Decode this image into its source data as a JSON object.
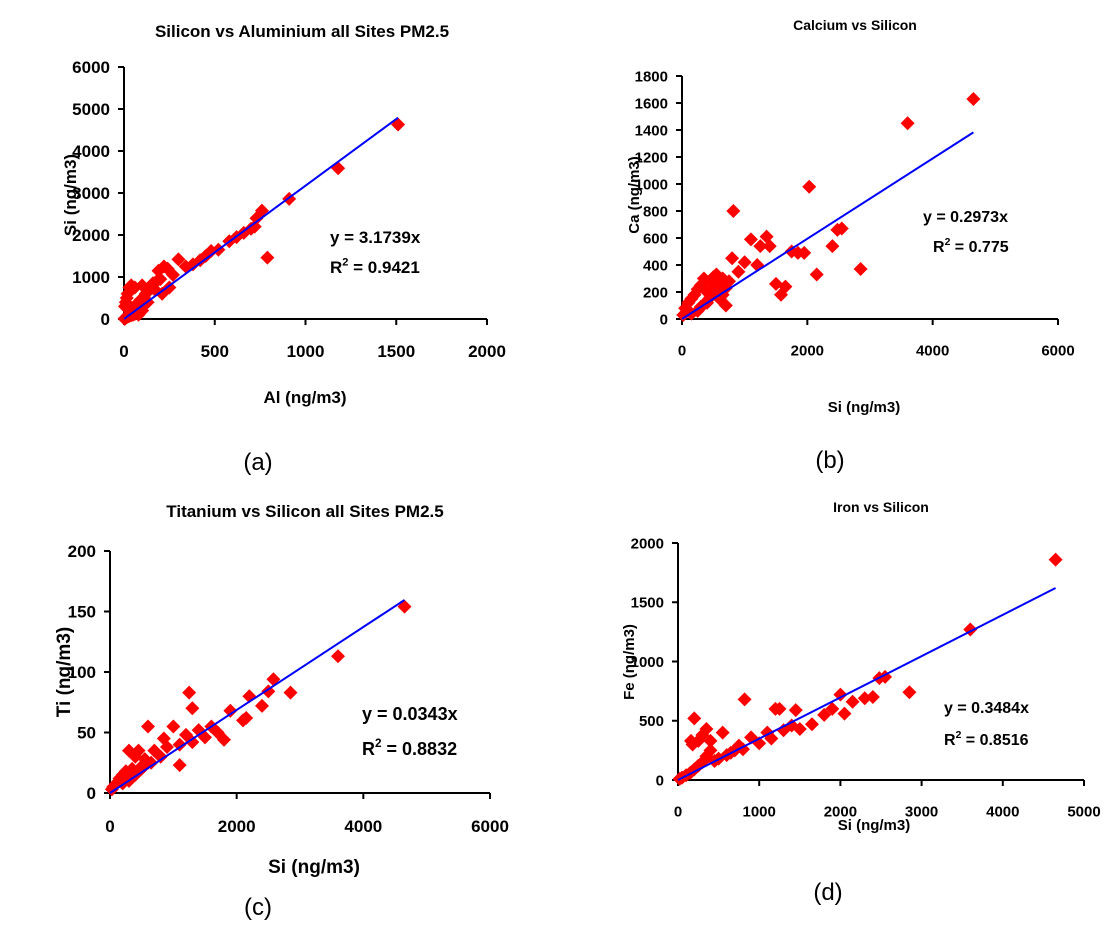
{
  "marker_color": "#ff0000",
  "trend_color": "#0000ff",
  "chart_data": [
    {
      "type": "scatter",
      "title": "Silicon vs Aluminium all Sites PM2.5",
      "xlabel": "Al (ng/m3)",
      "ylabel": "Si (ng/m3)",
      "xlim": [
        0,
        2000
      ],
      "ylim": [
        0,
        6000
      ],
      "xticks": [
        "0",
        "500",
        "1000",
        "1500",
        "2000"
      ],
      "yticks": [
        "0",
        "1000",
        "2000",
        "3000",
        "4000",
        "5000",
        "6000"
      ],
      "grid": false,
      "trendline": {
        "slope": 3.1739,
        "x_end": 1510
      },
      "equation": "y = 3.1739x",
      "r2_prefix": "R",
      "r2_sup": "2",
      "r2_value": " = 0.9421",
      "caption": "(a)",
      "x": [
        1510,
        1180,
        910,
        790,
        760,
        730,
        720,
        700,
        660,
        620,
        580,
        520,
        480,
        450,
        420,
        380,
        340,
        300,
        270,
        240,
        220,
        200,
        180,
        160,
        150,
        140,
        130,
        120,
        110,
        100,
        90,
        80,
        75,
        70,
        60,
        55,
        50,
        45,
        40,
        35,
        30,
        25,
        20,
        18,
        15,
        12,
        10,
        8,
        6,
        5,
        3,
        210,
        190,
        250,
        170,
        130,
        100,
        90,
        60,
        40,
        30,
        20,
        15,
        10,
        5,
        100,
        80,
        70,
        60,
        50,
        40,
        30,
        20
      ],
      "y": [
        4630,
        3590,
        2860,
        1460,
        2580,
        2400,
        2200,
        2150,
        2050,
        1950,
        1850,
        1650,
        1620,
        1500,
        1400,
        1300,
        1250,
        1420,
        1050,
        1200,
        1250,
        950,
        900,
        850,
        800,
        700,
        650,
        600,
        520,
        480,
        450,
        400,
        350,
        320,
        280,
        250,
        220,
        200,
        180,
        150,
        120,
        100,
        80,
        60,
        50,
        40,
        30,
        20,
        15,
        10,
        5,
        600,
        1150,
        750,
        700,
        400,
        800,
        200,
        750,
        800,
        750,
        600,
        500,
        400,
        300,
        200,
        100,
        150,
        120,
        100,
        90,
        70,
        50
      ]
    },
    {
      "type": "scatter",
      "title": "Calcium vs Silicon",
      "xlabel": "Si (ng/m3)",
      "ylabel": "Ca (ng/m3)",
      "xlim": [
        0,
        6000
      ],
      "ylim": [
        0,
        1800
      ],
      "xticks": [
        "0",
        "2000",
        "4000",
        "6000"
      ],
      "yticks": [
        "0",
        "200",
        "400",
        "600",
        "800",
        "1000",
        "1200",
        "1400",
        "1600",
        "1800"
      ],
      "grid": false,
      "trendline": {
        "slope": 0.2973,
        "x_end": 4650
      },
      "equation": "y = 0.2973x",
      "r2_prefix": "R",
      "r2_sup": "2",
      "r2_value": " = 0.775",
      "caption": "(b)",
      "x": [
        4650,
        3600,
        2850,
        2550,
        2480,
        2400,
        2150,
        2030,
        1950,
        1850,
        1750,
        1650,
        1580,
        1500,
        1400,
        1350,
        1250,
        1200,
        1100,
        1000,
        900,
        820,
        800,
        750,
        700,
        650,
        600,
        550,
        500,
        450,
        400,
        350,
        300,
        250,
        200,
        150,
        100,
        50,
        20,
        600,
        500,
        400,
        300,
        700,
        650,
        550,
        450,
        350,
        250,
        150
      ],
      "y": [
        1630,
        1450,
        370,
        670,
        660,
        540,
        330,
        980,
        490,
        490,
        500,
        240,
        180,
        260,
        540,
        610,
        540,
        400,
        590,
        420,
        350,
        800,
        450,
        280,
        230,
        300,
        250,
        330,
        310,
        280,
        200,
        300,
        250,
        220,
        180,
        150,
        120,
        80,
        30,
        150,
        200,
        120,
        90,
        100,
        180,
        240,
        160,
        110,
        60,
        40
      ]
    },
    {
      "type": "scatter",
      "title": "Titanium vs Silicon all Sites PM2.5",
      "xlabel": "Si (ng/m3)",
      "ylabel": "Ti (ng/m3)",
      "xlim": [
        0,
        6000
      ],
      "ylim": [
        0,
        200
      ],
      "xticks": [
        "0",
        "2000",
        "4000",
        "6000"
      ],
      "yticks": [
        "0",
        "50",
        "100",
        "150",
        "200"
      ],
      "grid": false,
      "trendline": {
        "slope": 0.0343,
        "x_end": 4650
      },
      "equation": "y = 0.0343x",
      "r2_prefix": "R",
      "r2_sup": "2",
      "r2_value": " = 0.8832",
      "caption": "(c)",
      "x": [
        4650,
        3600,
        2850,
        2580,
        2500,
        2400,
        2200,
        2150,
        2100,
        1900,
        1800,
        1700,
        1600,
        1500,
        1400,
        1300,
        1250,
        1200,
        1100,
        1000,
        900,
        850,
        800,
        700,
        650,
        600,
        550,
        500,
        450,
        400,
        350,
        300,
        250,
        200,
        150,
        100,
        50,
        30,
        1300,
        1100,
        600,
        500,
        400,
        300,
        200
      ],
      "y": [
        154,
        113,
        83,
        94,
        84,
        72,
        80,
        62,
        60,
        68,
        44,
        50,
        55,
        46,
        52,
        70,
        83,
        48,
        40,
        55,
        38,
        45,
        30,
        35,
        25,
        55,
        28,
        22,
        35,
        30,
        20,
        35,
        18,
        15,
        12,
        8,
        5,
        3,
        42,
        23,
        25,
        20,
        15,
        10,
        8
      ]
    },
    {
      "type": "scatter",
      "title": "Iron vs Silicon",
      "xlabel": "Si (ng/m3)",
      "ylabel": "Fe (ng/m3)",
      "xlim": [
        0,
        5000
      ],
      "ylim": [
        0,
        2000
      ],
      "xticks": [
        "0",
        "1000",
        "2000",
        "3000",
        "4000",
        "5000"
      ],
      "yticks": [
        "0",
        "500",
        "1000",
        "1500",
        "2000"
      ],
      "grid": false,
      "trendline": {
        "slope": 0.3484,
        "x_end": 4650
      },
      "equation": "y = 0.3484x",
      "r2_prefix": "R",
      "r2_sup": "2",
      "r2_value": " = 0.8516",
      "caption": "(d)",
      "x": [
        4650,
        3600,
        2850,
        2550,
        2480,
        2400,
        2300,
        2150,
        2050,
        2000,
        1900,
        1800,
        1650,
        1500,
        1450,
        1400,
        1300,
        1250,
        1200,
        1150,
        1100,
        1000,
        900,
        820,
        800,
        750,
        700,
        650,
        600,
        550,
        500,
        450,
        400,
        350,
        300,
        250,
        200,
        150,
        100,
        50,
        20,
        200,
        180,
        160,
        400,
        350,
        300,
        250
      ],
      "y": [
        1860,
        1270,
        740,
        870,
        860,
        700,
        690,
        660,
        560,
        720,
        600,
        550,
        470,
        430,
        590,
        460,
        420,
        600,
        600,
        350,
        400,
        310,
        360,
        680,
        260,
        290,
        250,
        230,
        210,
        400,
        180,
        160,
        250,
        200,
        150,
        120,
        90,
        60,
        40,
        20,
        10,
        520,
        300,
        330,
        330,
        430,
        380,
        330
      ]
    }
  ]
}
